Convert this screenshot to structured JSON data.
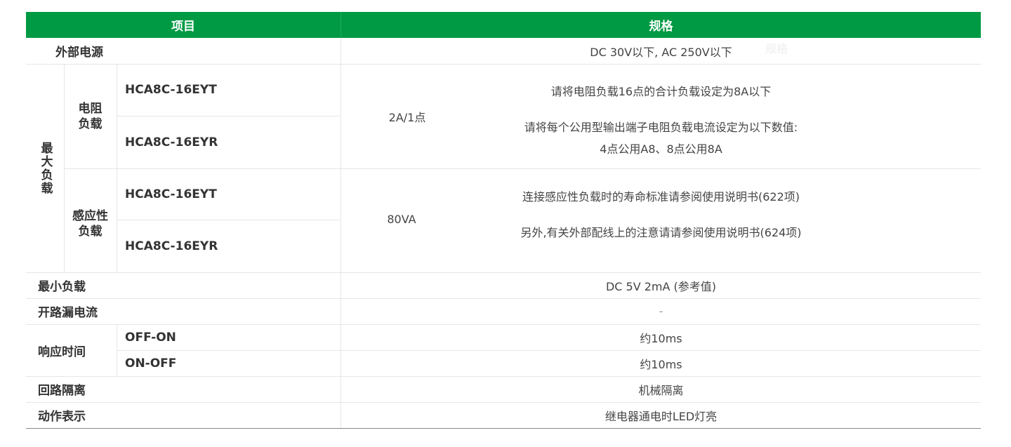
{
  "header": {
    "item": "项目",
    "spec": "规格",
    "ghost": "规格"
  },
  "rows": {
    "ext_power": {
      "label": "外部电源",
      "value": "DC 30V以下, AC 250V以下"
    },
    "max_load": {
      "label": "最大负载",
      "resistive": {
        "label1": "电阻",
        "label2": "负载",
        "models": [
          "HCA8C-16EYT",
          "HCA8C-16EYR"
        ],
        "value": "2A/1点",
        "note1": "请将电阻负载16点的合计负载设定为8A以下",
        "note2a": "请将每个公用型输出端子电阻负载电流设定为以下数值:",
        "note2b": "4点公用A8、8点公用8A"
      },
      "inductive": {
        "label1": "感应性",
        "label2": "负载",
        "models": [
          "HCA8C-16EYT",
          "HCA8C-16EYR"
        ],
        "value": "80VA",
        "note1": "连接感应性负载时的寿命标准请参阅使用说明书(622项)",
        "note2": "另外,有关外部配线上的注意请请参阅使用说明书(624项)"
      }
    },
    "min_load": {
      "label": "最小负载",
      "value": "DC 5V  2mA (参考值)"
    },
    "leak": {
      "label": "开路漏电流",
      "value": "-"
    },
    "response": {
      "label": "响应时间",
      "sub": [
        {
          "label": "OFF-ON",
          "value": "约10ms"
        },
        {
          "label": "ON-OFF",
          "value": "约10ms"
        }
      ]
    },
    "isolation": {
      "label": "回路隔离",
      "value": "机械隔离"
    },
    "indicator": {
      "label": "动作表示",
      "value": "继电器通电时LED灯亮"
    }
  },
  "colors": {
    "header_bg": "#009a44"
  }
}
